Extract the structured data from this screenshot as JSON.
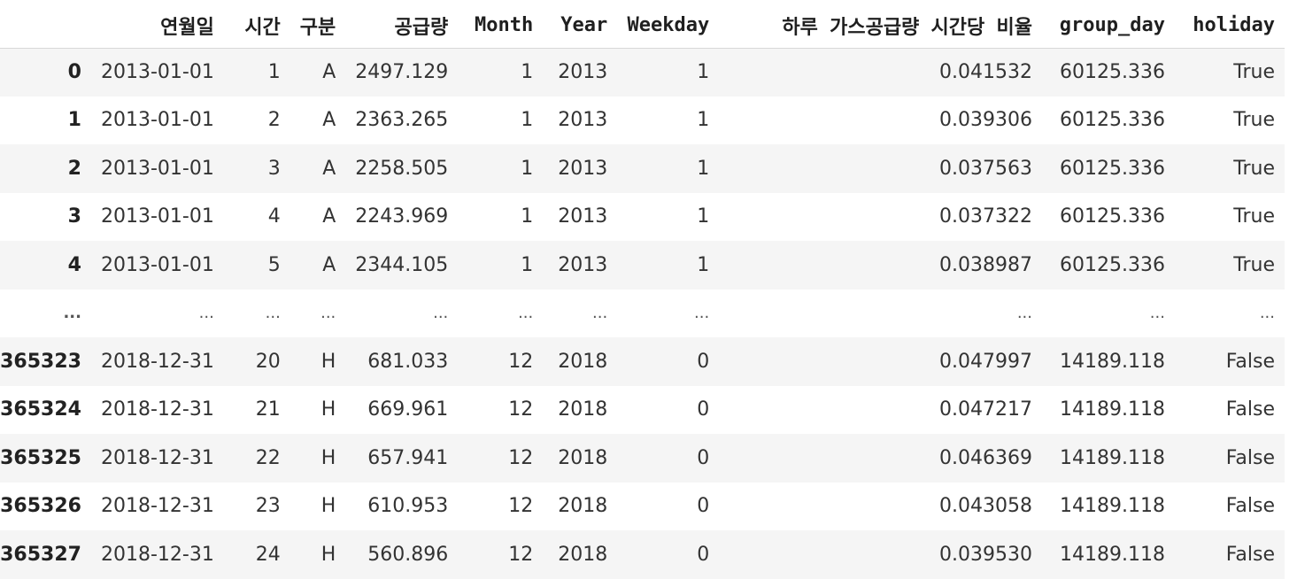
{
  "dataframe": {
    "columns": [
      "",
      "연월일",
      "시간",
      "구분",
      "공급량",
      "Month",
      "Year",
      "Weekday",
      "하루 가스공급량 시간당 비율",
      "group_day",
      "holiday"
    ],
    "rows": [
      [
        "0",
        "2013-01-01",
        "1",
        "A",
        "2497.129",
        "1",
        "2013",
        "1",
        "0.041532",
        "60125.336",
        "True"
      ],
      [
        "1",
        "2013-01-01",
        "2",
        "A",
        "2363.265",
        "1",
        "2013",
        "1",
        "0.039306",
        "60125.336",
        "True"
      ],
      [
        "2",
        "2013-01-01",
        "3",
        "A",
        "2258.505",
        "1",
        "2013",
        "1",
        "0.037563",
        "60125.336",
        "True"
      ],
      [
        "3",
        "2013-01-01",
        "4",
        "A",
        "2243.969",
        "1",
        "2013",
        "1",
        "0.037322",
        "60125.336",
        "True"
      ],
      [
        "4",
        "2013-01-01",
        "5",
        "A",
        "2344.105",
        "1",
        "2013",
        "1",
        "0.038987",
        "60125.336",
        "True"
      ],
      [
        "...",
        "...",
        "...",
        "...",
        "...",
        "...",
        "...",
        "...",
        "...",
        "...",
        "..."
      ],
      [
        "365323",
        "2018-12-31",
        "20",
        "H",
        "681.033",
        "12",
        "2018",
        "0",
        "0.047997",
        "14189.118",
        "False"
      ],
      [
        "365324",
        "2018-12-31",
        "21",
        "H",
        "669.961",
        "12",
        "2018",
        "0",
        "0.047217",
        "14189.118",
        "False"
      ],
      [
        "365325",
        "2018-12-31",
        "22",
        "H",
        "657.941",
        "12",
        "2018",
        "0",
        "0.046369",
        "14189.118",
        "False"
      ],
      [
        "365326",
        "2018-12-31",
        "23",
        "H",
        "610.953",
        "12",
        "2018",
        "0",
        "0.043058",
        "14189.118",
        "False"
      ],
      [
        "365327",
        "2018-12-31",
        "24",
        "H",
        "560.896",
        "12",
        "2018",
        "0",
        "0.039530",
        "14189.118",
        "False"
      ]
    ]
  }
}
